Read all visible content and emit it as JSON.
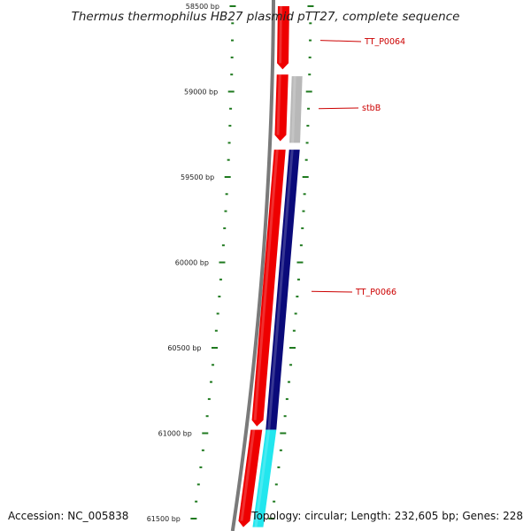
{
  "title": "Thermus thermophilus HB27 plasmid pTT27, complete sequence",
  "footer": {
    "accession": "Accession: NC_005838",
    "topology": "Topology: circular; Length: 232,605 bp; Genes: 228"
  },
  "colors": {
    "backbone": "#7a7a7a",
    "forward_gene": "#ee0000",
    "reverse_gene": "#0a0a7a",
    "pseudo_gene": "#b8b8b8",
    "rna_gene": "#22e6ee",
    "tick": "#1f7a1f",
    "label": "#cc0000"
  },
  "ruler": {
    "labels": [
      "58500 bp",
      "59000 bp",
      "59500 bp",
      "60000 bp",
      "60500 bp",
      "61000 bp",
      "61500 bp"
    ]
  },
  "gene_labels": [
    {
      "name": "TT_P0064"
    },
    {
      "name": "stbB"
    },
    {
      "name": "TT_P0066"
    }
  ],
  "features": [
    {
      "label": "TT_P0064",
      "start": 58500,
      "end": 58870,
      "strand": "+",
      "kind": "gene"
    },
    {
      "label": "",
      "start": 58900,
      "end": 59290,
      "strand": "+",
      "kind": "gene"
    },
    {
      "label": "stbB",
      "start": 58910,
      "end": 59300,
      "strand": "-",
      "kind": "pseudo"
    },
    {
      "label": "",
      "start": 59340,
      "end": 60960,
      "strand": "+",
      "kind": "gene"
    },
    {
      "label": "TT_P0066",
      "start": 59340,
      "end": 60980,
      "strand": "-",
      "kind": "gene"
    },
    {
      "label": "",
      "start": 60980,
      "end": 61550,
      "strand": "+",
      "kind": "gene"
    },
    {
      "label": "",
      "start": 60980,
      "end": 61550,
      "strand": "-",
      "kind": "rna"
    }
  ]
}
